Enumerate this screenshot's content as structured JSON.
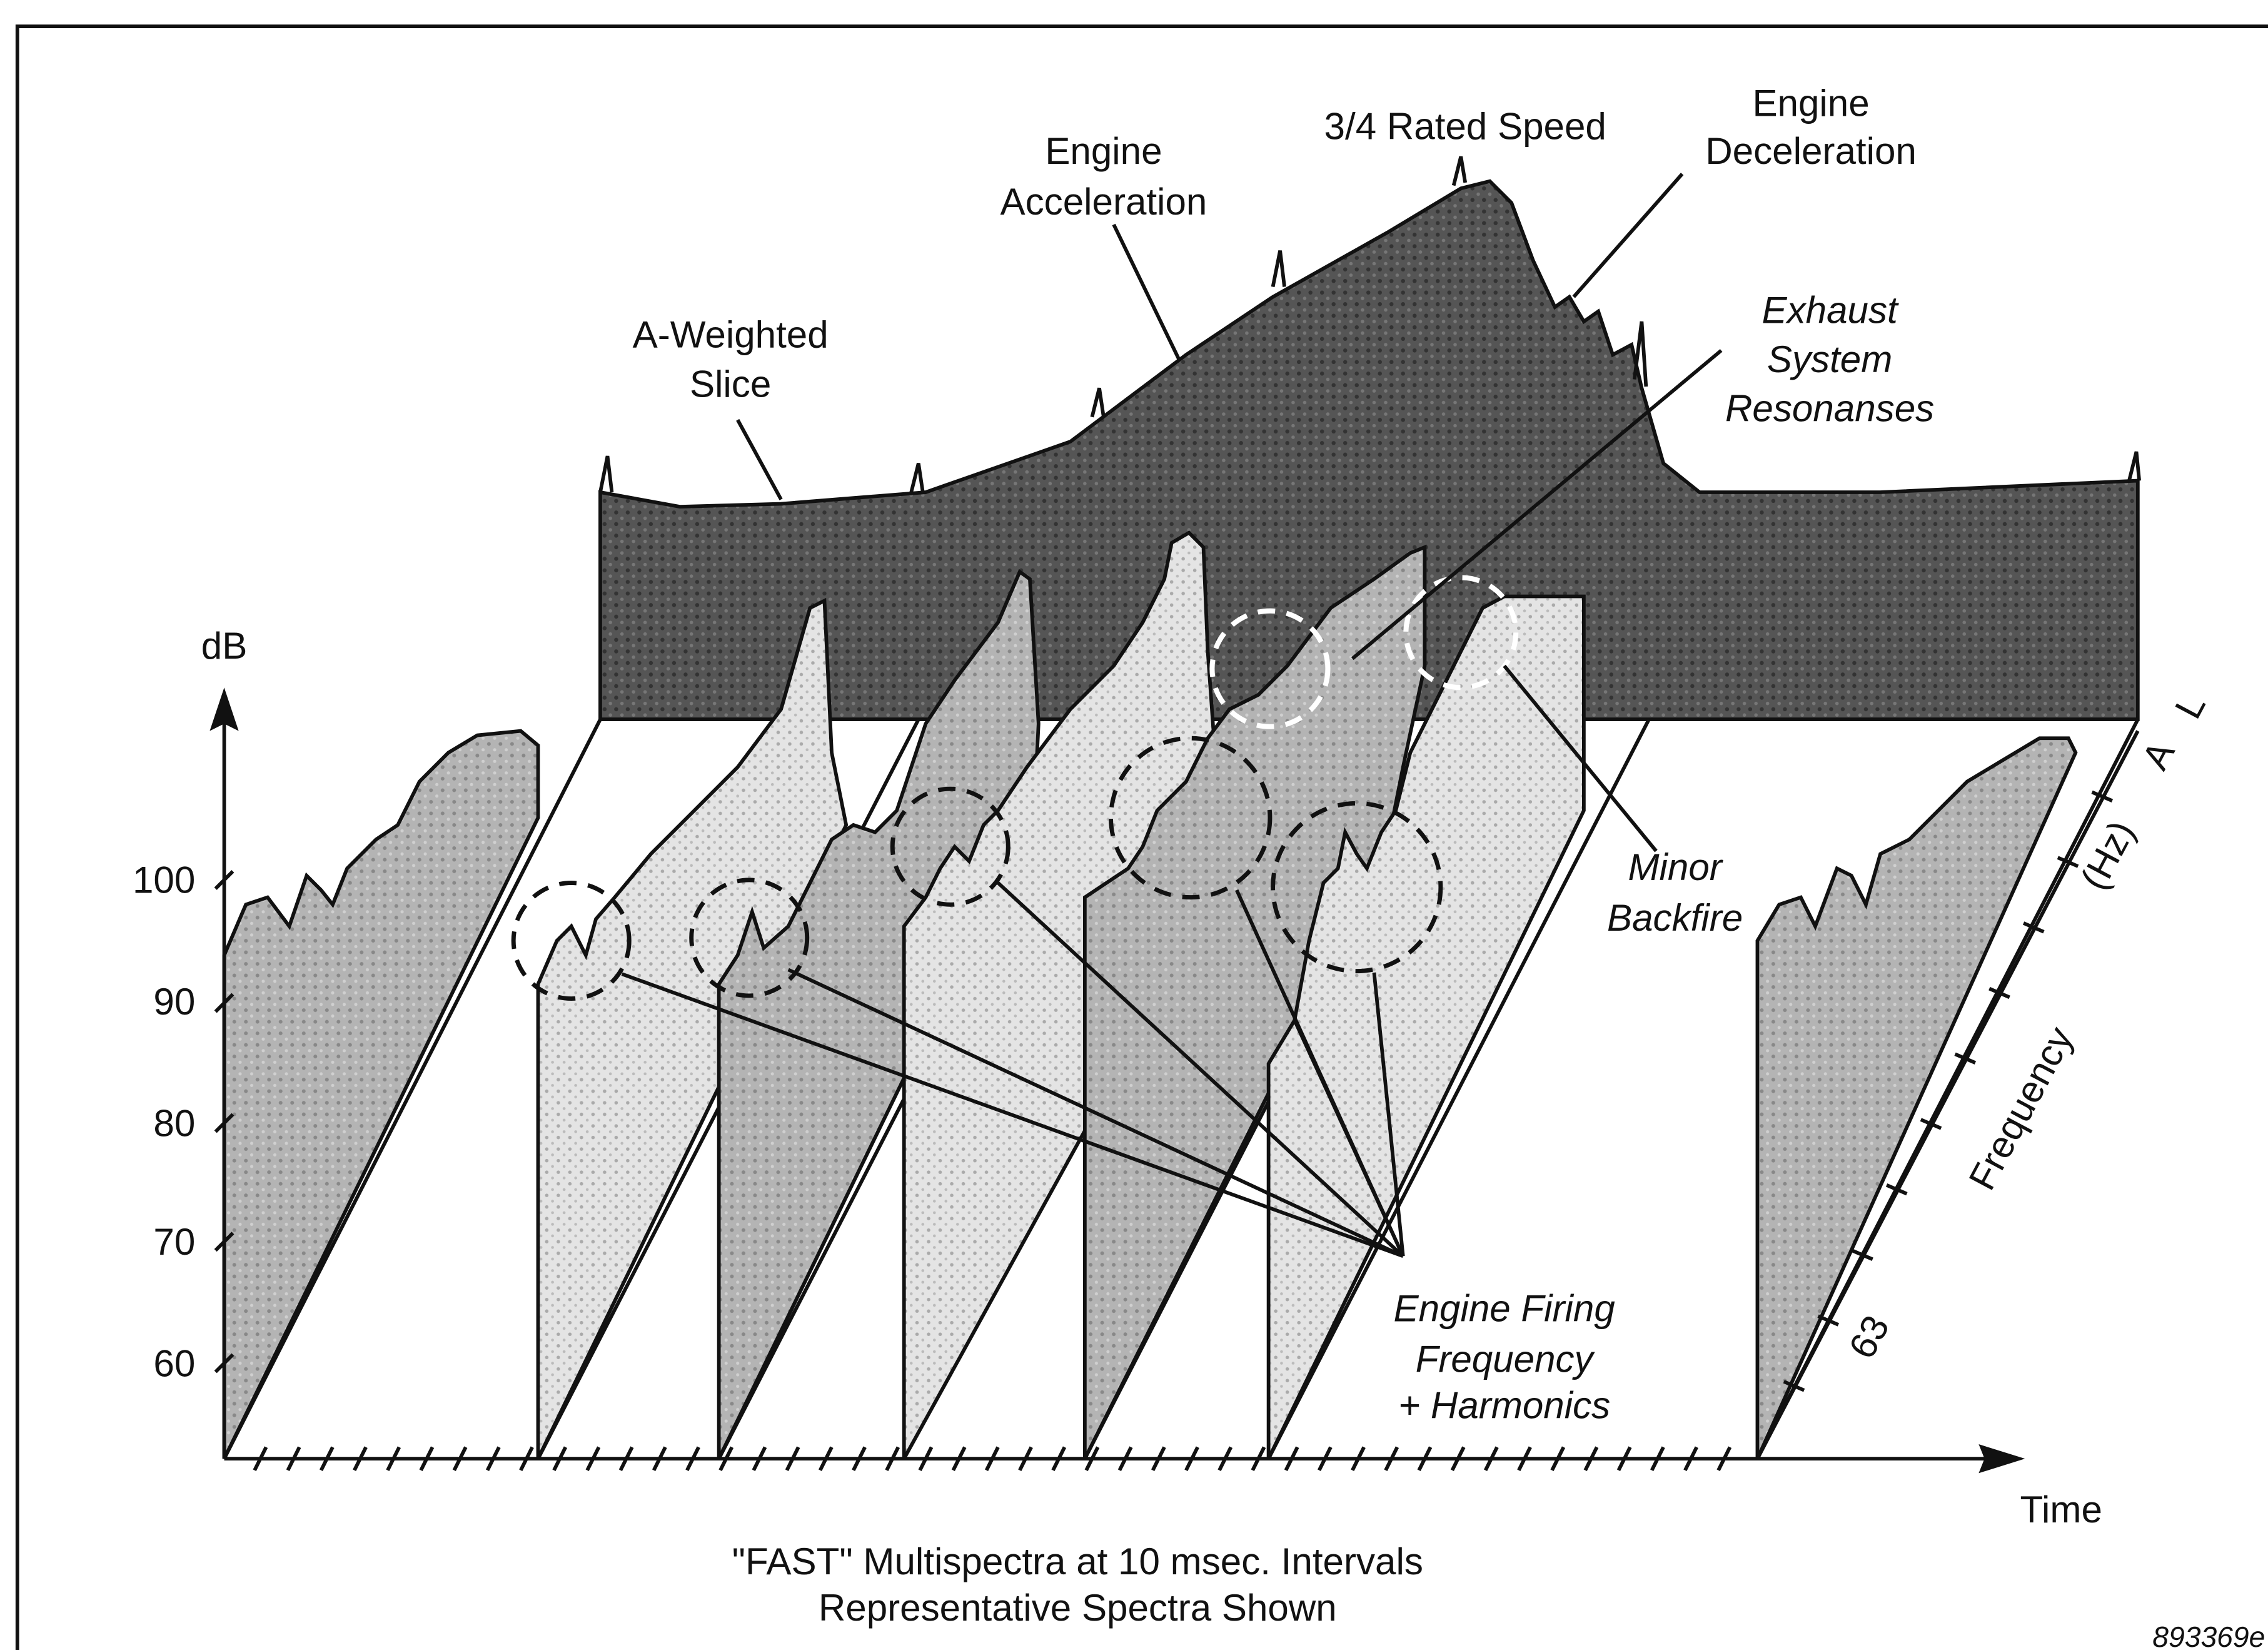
{
  "axes": {
    "y_label": "dB",
    "y_ticks": [
      "100",
      "90",
      "80",
      "70",
      "60"
    ],
    "x_label": "Time",
    "z_label": "Frequency",
    "z_unit": "(Hz)",
    "z_tick": "63",
    "z_end": [
      "A",
      "L"
    ]
  },
  "annotations": [
    {
      "lines": [
        "A-Weighted",
        "Slice"
      ]
    },
    {
      "lines": [
        "Engine",
        "Acceleration"
      ]
    },
    {
      "lines": [
        "3/4 Rated Speed"
      ]
    },
    {
      "lines": [
        "Engine",
        "Deceleration"
      ]
    },
    {
      "lines": [
        "Exhaust",
        "System",
        "Resonanses"
      ]
    },
    {
      "lines": [
        "Minor",
        "Backfire"
      ]
    },
    {
      "lines": [
        "Engine Firing",
        "Frequency",
        "+ Harmonics"
      ]
    }
  ],
  "caption": [
    "\"FAST\" Multispectra at 10 msec. Intervals",
    "Representative Spectra Shown"
  ],
  "figure_id": "893369e"
}
